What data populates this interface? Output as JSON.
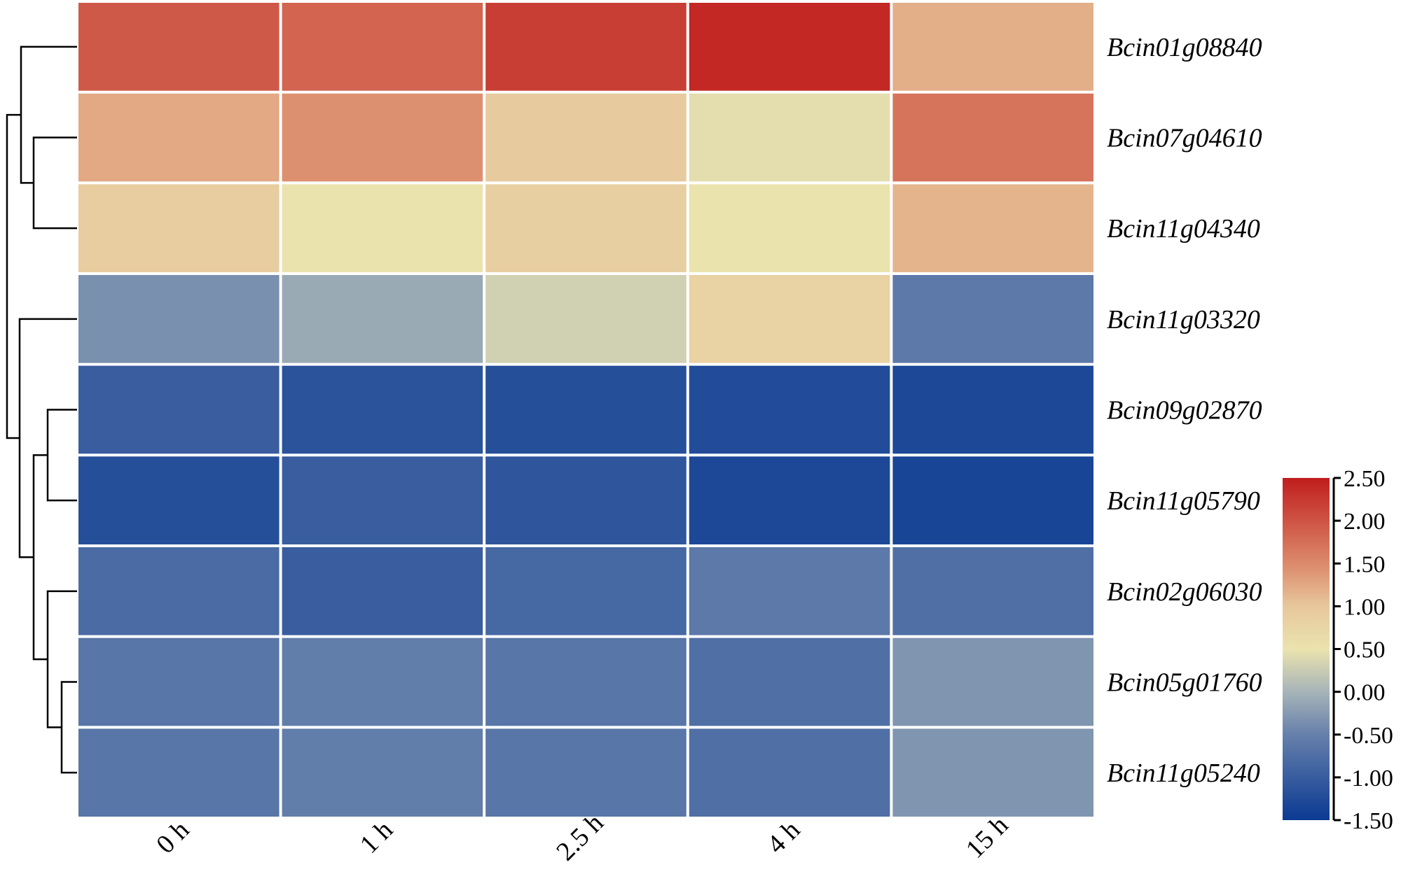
{
  "chart_data": {
    "type": "heatmap",
    "columns": [
      "0 h",
      "1 h",
      "2.5 h",
      "4 h",
      "15 h"
    ],
    "rows": [
      "Bcin01g08840",
      "Bcin07g04610",
      "Bcin11g04340",
      "Bcin11g03320",
      "Bcin09g02870",
      "Bcin11g05790",
      "Bcin02g06030",
      "Bcin05g01760",
      "Bcin11g05240"
    ],
    "values": [
      [
        1.95,
        1.85,
        2.2,
        2.4,
        1.2
      ],
      [
        1.25,
        1.45,
        0.95,
        0.45,
        1.7
      ],
      [
        0.9,
        0.5,
        0.85,
        0.5,
        1.15
      ],
      [
        -0.35,
        -0.1,
        0.3,
        0.8,
        -0.6
      ],
      [
        -1.0,
        -1.15,
        -1.2,
        -1.25,
        -1.3
      ],
      [
        -1.2,
        -1.0,
        -1.1,
        -1.3,
        -1.35
      ],
      [
        -0.8,
        -1.0,
        -0.85,
        -0.6,
        -0.75
      ],
      [
        -0.65,
        -0.55,
        -0.65,
        -0.75,
        -0.3
      ],
      [
        -0.65,
        -0.55,
        -0.65,
        -0.75,
        -0.3
      ]
    ],
    "color_scale": {
      "min": -1.5,
      "max": 2.5,
      "ticks": [
        "2.50",
        "2.00",
        "1.50",
        "1.00",
        "0.50",
        "0.00",
        "-0.50",
        "-1.00",
        "-1.50"
      ],
      "stops": [
        {
          "value": -1.5,
          "color": "#0b3a93"
        },
        {
          "value": -0.5,
          "color": "#6680ab"
        },
        {
          "value": 0.0,
          "color": "#a7b4b8"
        },
        {
          "value": 0.5,
          "color": "#ebe3ae"
        },
        {
          "value": 1.0,
          "color": "#e7c79c"
        },
        {
          "value": 1.5,
          "color": "#dc8a6b"
        },
        {
          "value": 2.5,
          "color": "#c01d1d"
        }
      ]
    },
    "row_dendrogram": "left",
    "legend_position": "right"
  }
}
